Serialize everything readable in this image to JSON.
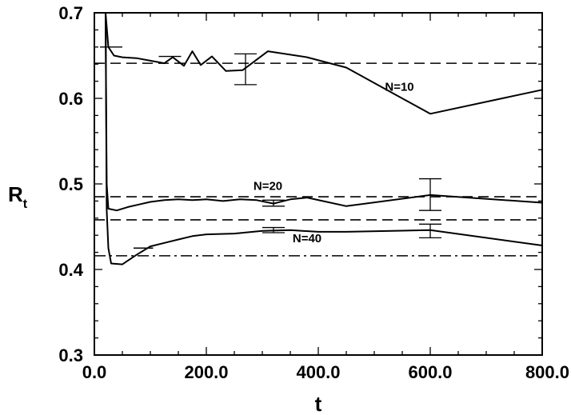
{
  "chart_data": {
    "type": "line",
    "xlabel": "t",
    "ylabel": "R",
    "ylabel_sub": "t",
    "xlim": [
      0,
      800
    ],
    "ylim": [
      0.3,
      0.7
    ],
    "grid": false,
    "x_ticks": [
      {
        "value": 0,
        "label": "0.0"
      },
      {
        "value": 200,
        "label": "200.0"
      },
      {
        "value": 400,
        "label": "400.0"
      },
      {
        "value": 600,
        "label": "600.0"
      },
      {
        "value": 800,
        "label": "800.0"
      }
    ],
    "y_ticks": [
      {
        "value": 0.3,
        "label": "0.3"
      },
      {
        "value": 0.4,
        "label": "0.4"
      },
      {
        "value": 0.5,
        "label": "0.5"
      },
      {
        "value": 0.6,
        "label": "0.6"
      },
      {
        "value": 0.7,
        "label": "0.7"
      }
    ],
    "series": [
      {
        "name": "N=10",
        "x": [
          20,
          25,
          35,
          50,
          75,
          100,
          125,
          140,
          160,
          175,
          190,
          210,
          235,
          265,
          310,
          380,
          450,
          600,
          800
        ],
        "y": [
          0.71,
          0.66,
          0.65,
          0.648,
          0.647,
          0.644,
          0.641,
          0.648,
          0.638,
          0.655,
          0.639,
          0.649,
          0.632,
          0.633,
          0.655,
          0.648,
          0.636,
          0.582,
          0.61
        ]
      },
      {
        "name": "N=20",
        "x": [
          20,
          22,
          25,
          40,
          60,
          80,
          100,
          125,
          150,
          175,
          200,
          230,
          260,
          290,
          320,
          350,
          380,
          450,
          600,
          800
        ],
        "y": [
          0.71,
          0.5,
          0.471,
          0.469,
          0.473,
          0.476,
          0.479,
          0.481,
          0.482,
          0.481,
          0.482,
          0.48,
          0.482,
          0.481,
          0.477,
          0.482,
          0.484,
          0.474,
          0.487,
          0.478
        ]
      },
      {
        "name": "N=40",
        "x": [
          20,
          22,
          25,
          30,
          50,
          75,
          100,
          125,
          150,
          175,
          200,
          250,
          300,
          350,
          400,
          450,
          600,
          800
        ],
        "y": [
          0.71,
          0.47,
          0.425,
          0.407,
          0.406,
          0.417,
          0.427,
          0.431,
          0.435,
          0.439,
          0.441,
          0.442,
          0.445,
          0.446,
          0.444,
          0.444,
          0.446,
          0.428
        ]
      }
    ],
    "reference_lines": [
      {
        "y": 0.641,
        "style": "dashed"
      },
      {
        "y": 0.485,
        "style": "dashed"
      },
      {
        "y": 0.458,
        "style": "dashed"
      },
      {
        "y": 0.416,
        "style": "dashdot"
      }
    ],
    "error_bars": [
      {
        "x": 270,
        "low": 0.616,
        "high": 0.652
      },
      {
        "x": 600,
        "low": 0.469,
        "high": 0.506
      },
      {
        "x": 320,
        "low": 0.474,
        "high": 0.481
      },
      {
        "x": 320,
        "low": 0.443,
        "high": 0.449
      },
      {
        "x": 600,
        "low": 0.437,
        "high": 0.453
      }
    ],
    "short_segments": [
      {
        "x1": 10,
        "x2": 50,
        "y": 0.66
      },
      {
        "x1": 115,
        "x2": 155,
        "y": 0.649
      },
      {
        "x1": 70,
        "x2": 105,
        "y": 0.425
      }
    ],
    "annotations": [
      {
        "text": "N=10",
        "x": 545,
        "y": 0.609
      },
      {
        "text": "N=20",
        "x": 310,
        "y": 0.493
      },
      {
        "text": "N=40",
        "x": 380,
        "y": 0.432
      }
    ]
  }
}
